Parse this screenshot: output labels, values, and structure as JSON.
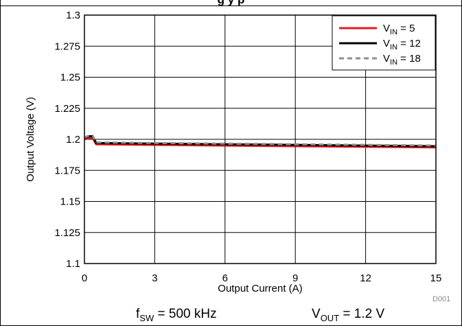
{
  "chart_data": {
    "type": "line",
    "title": "",
    "xlabel": "Output Current (A)",
    "ylabel": "Output Voltage (V)",
    "xlim": [
      0,
      15
    ],
    "ylim": [
      1.1,
      1.3
    ],
    "xticks": [
      0,
      3,
      6,
      9,
      12,
      15
    ],
    "yticks": [
      1.1,
      1.125,
      1.15,
      1.175,
      1.2,
      1.225,
      1.25,
      1.275,
      1.3
    ],
    "x_tick_labels": [
      "0",
      "3",
      "6",
      "9",
      "12",
      "15"
    ],
    "y_tick_labels": [
      "1.1",
      "1.125",
      "1.15",
      "1.175",
      "1.2",
      "1.225",
      "1.25",
      "1.275",
      "1.3"
    ],
    "grid": true,
    "legend_position": "top-right",
    "series": [
      {
        "name_main": "V",
        "name_sub": "IN",
        "name_value": " = 5",
        "color": "#e8191d",
        "dash": "solid",
        "x": [
          0,
          0.2,
          0.35,
          0.5,
          3,
          6,
          9,
          12,
          15
        ],
        "y": [
          1.2,
          1.201,
          1.201,
          1.196,
          1.1955,
          1.195,
          1.1945,
          1.194,
          1.1935
        ]
      },
      {
        "name_main": "V",
        "name_sub": "IN",
        "name_value": " = 12",
        "color": "#000000",
        "dash": "solid",
        "x": [
          0,
          0.2,
          0.35,
          0.5,
          3,
          6,
          9,
          12,
          15
        ],
        "y": [
          1.201,
          1.2025,
          1.2025,
          1.197,
          1.1965,
          1.196,
          1.1955,
          1.195,
          1.1945
        ]
      },
      {
        "name_main": "V",
        "name_sub": "IN",
        "name_value": " = 18",
        "color": "#8c8c8c",
        "dash": "dashed",
        "x": [
          0,
          0.2,
          0.35,
          0.5,
          3,
          6,
          9,
          12,
          15
        ],
        "y": [
          1.2015,
          1.203,
          1.203,
          1.1975,
          1.197,
          1.1965,
          1.196,
          1.1955,
          1.195
        ]
      }
    ]
  },
  "title_fragment": "g                    y   p",
  "figure_id": "D001",
  "footer": {
    "fsw_main": "f",
    "fsw_sub": "SW",
    "fsw_value": " = 500 kHz",
    "vout_main": "V",
    "vout_sub": "OUT",
    "vout_value": " = 1.2 V"
  }
}
